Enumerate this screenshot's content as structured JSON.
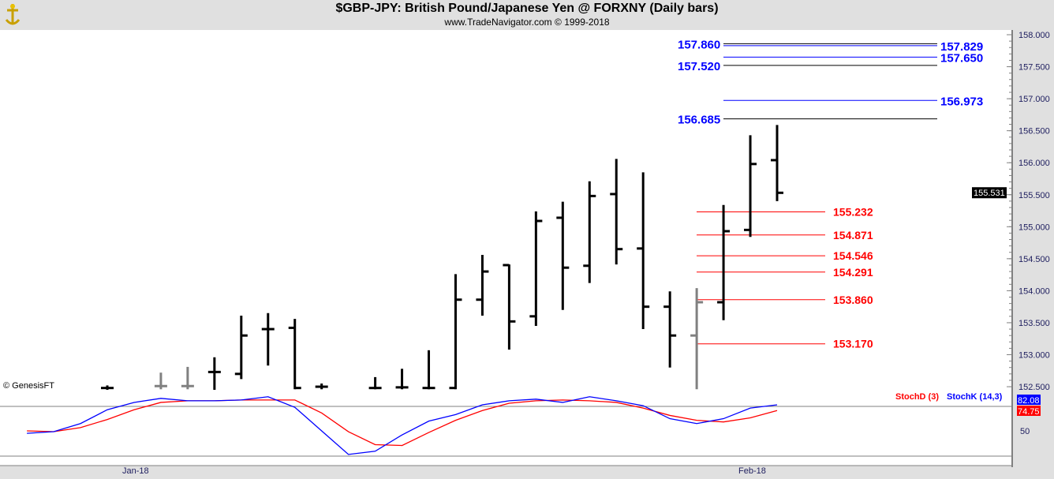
{
  "header": {
    "title": "$GBP-JPY:  British Pound/Japanese Yen @ FORXNY  (Daily bars)",
    "subtitle": "www.TradeNavigator.com © 1999-2018"
  },
  "copyright": "© GenesisFT",
  "chart_data": {
    "type": "ohlc",
    "title": "$GBP-JPY:  British Pound/Japanese Yen @ FORXNY  (Daily bars)",
    "ylim": [
      152.5,
      158.0
    ],
    "y_ticks": [
      "158.000",
      "157.500",
      "157.000",
      "156.500",
      "156.000",
      "155.500",
      "155.000",
      "154.500",
      "154.000",
      "153.500",
      "153.000",
      "152.500"
    ],
    "x_ticks": [
      {
        "slot": 1,
        "label": "Jan-18"
      },
      {
        "slot": 24,
        "label": "Feb-18"
      }
    ],
    "last_price": "155.531",
    "bars": [
      {
        "slot": 0,
        "o": 152.48,
        "h": 152.52,
        "l": 152.45,
        "c": 152.48
      },
      {
        "slot": 2,
        "o": 152.51,
        "h": 152.72,
        "l": 152.46,
        "c": 152.51,
        "grey": true
      },
      {
        "slot": 3,
        "o": 152.51,
        "h": 152.81,
        "l": 152.46,
        "c": 152.51,
        "grey": true
      },
      {
        "slot": 4,
        "o": 152.73,
        "h": 152.96,
        "l": 152.45,
        "c": 152.73
      },
      {
        "slot": 5,
        "o": 152.7,
        "h": 153.61,
        "l": 152.62,
        "c": 153.3
      },
      {
        "slot": 6,
        "o": 153.4,
        "h": 153.65,
        "l": 152.83,
        "c": 153.4
      },
      {
        "slot": 7,
        "o": 153.42,
        "h": 153.56,
        "l": 152.46,
        "c": 152.48
      },
      {
        "slot": 8,
        "o": 152.5,
        "h": 152.55,
        "l": 152.46,
        "c": 152.5
      },
      {
        "slot": 10,
        "o": 152.48,
        "h": 152.65,
        "l": 152.46,
        "c": 152.48
      },
      {
        "slot": 11,
        "o": 152.49,
        "h": 152.78,
        "l": 152.46,
        "c": 152.49
      },
      {
        "slot": 12,
        "o": 152.48,
        "h": 153.07,
        "l": 152.46,
        "c": 152.48
      },
      {
        "slot": 13,
        "o": 152.48,
        "h": 154.26,
        "l": 152.46,
        "c": 153.86
      },
      {
        "slot": 14,
        "o": 153.86,
        "h": 154.56,
        "l": 153.61,
        "c": 154.3
      },
      {
        "slot": 15,
        "o": 154.4,
        "h": 154.41,
        "l": 153.08,
        "c": 153.52
      },
      {
        "slot": 16,
        "o": 153.6,
        "h": 155.24,
        "l": 153.45,
        "c": 155.09
      },
      {
        "slot": 17,
        "o": 155.14,
        "h": 155.39,
        "l": 153.7,
        "c": 154.36
      },
      {
        "slot": 18,
        "o": 154.39,
        "h": 155.71,
        "l": 154.12,
        "c": 155.48
      },
      {
        "slot": 19,
        "o": 155.51,
        "h": 156.06,
        "l": 154.41,
        "c": 154.65
      },
      {
        "slot": 20,
        "o": 154.66,
        "h": 155.85,
        "l": 153.4,
        "c": 153.75
      },
      {
        "slot": 21,
        "o": 153.75,
        "h": 153.99,
        "l": 152.8,
        "c": 153.3
      },
      {
        "slot": 22,
        "o": 153.3,
        "h": 154.04,
        "l": 152.46,
        "c": 153.82,
        "grey": true
      },
      {
        "slot": 23,
        "o": 153.82,
        "h": 155.34,
        "l": 153.54,
        "c": 154.93
      },
      {
        "slot": 24,
        "o": 154.95,
        "h": 156.43,
        "l": 154.84,
        "c": 155.98
      },
      {
        "slot": 25,
        "o": 156.04,
        "h": 156.59,
        "l": 155.4,
        "c": 155.53
      }
    ],
    "levels": [
      {
        "value": 157.86,
        "label": "157.860",
        "side": "left",
        "color": "#0000ff"
      },
      {
        "value": 157.829,
        "label": "157.829",
        "side": "right",
        "color": "#0000ff"
      },
      {
        "value": 157.65,
        "label": "157.650",
        "side": "right",
        "color": "#0000ff"
      },
      {
        "value": 157.52,
        "label": "157.520",
        "side": "left",
        "color": "#0000ff"
      },
      {
        "value": 156.973,
        "label": "156.973",
        "side": "right",
        "color": "#0000ff"
      },
      {
        "value": 156.685,
        "label": "156.685",
        "side": "left",
        "color": "#0000ff"
      },
      {
        "value": 155.232,
        "label": "155.232",
        "side": "red",
        "color": "#ff0000"
      },
      {
        "value": 154.871,
        "label": "154.871",
        "side": "red",
        "color": "#ff0000"
      },
      {
        "value": 154.546,
        "label": "154.546",
        "side": "red",
        "color": "#ff0000"
      },
      {
        "value": 154.291,
        "label": "154.291",
        "side": "red",
        "color": "#ff0000"
      },
      {
        "value": 153.86,
        "label": "153.860",
        "side": "red",
        "color": "#ff0000"
      },
      {
        "value": 153.17,
        "label": "153.170",
        "side": "red",
        "color": "#ff0000"
      }
    ],
    "stochastic": {
      "first_slot": -3,
      "k_label": "StochK (14,3)",
      "d_label": "StochD (3)",
      "k_last": "82.08",
      "d_last": "74.75",
      "tick": "50",
      "k_color": "#0000ff",
      "d_color": "#ff0000",
      "k": [
        47,
        49,
        59,
        76,
        85,
        90,
        87,
        87,
        88,
        92,
        79,
        50,
        21,
        25,
        45,
        62,
        70,
        82,
        87,
        89,
        85,
        92,
        87,
        81,
        65,
        59,
        65,
        78,
        82
      ],
      "d": [
        50,
        49,
        54,
        64,
        76,
        85,
        87,
        87,
        88,
        88,
        88,
        72,
        49,
        33,
        32,
        48,
        63,
        75,
        84,
        87,
        88,
        87,
        85,
        78,
        69,
        63,
        61,
        66,
        75
      ]
    }
  }
}
